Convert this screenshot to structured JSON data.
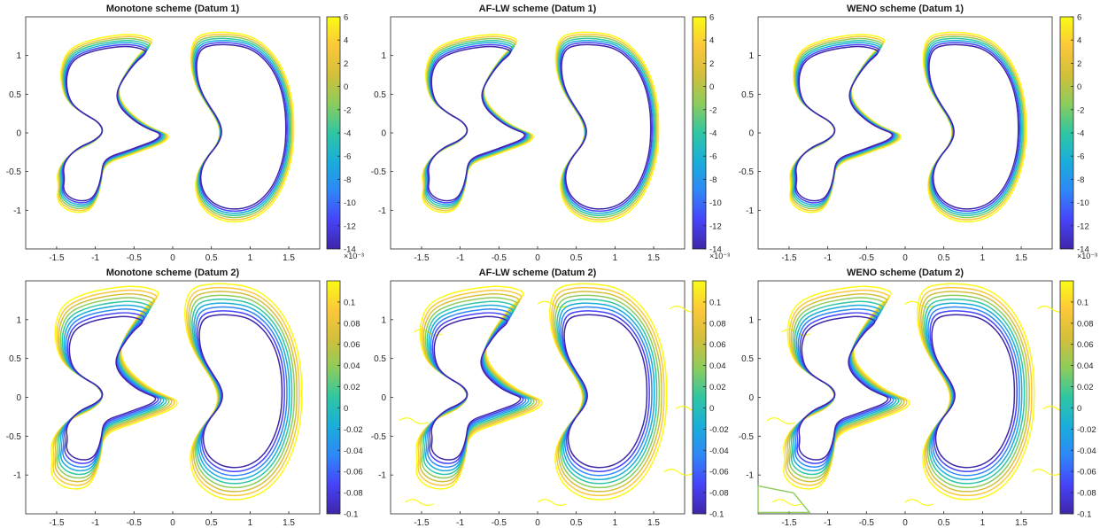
{
  "colormap": [
    "#3e26a8",
    "#4743f8",
    "#2e87f7",
    "#1aaddb",
    "#2fc6a3",
    "#8ccc5c",
    "#d2bf3b",
    "#fcc73a",
    "#f9fb15"
  ],
  "chart_data": [
    {
      "type": "contour",
      "title": "Monotone scheme (Datum 1)",
      "xlim": [
        -1.9,
        1.9
      ],
      "ylim": [
        -1.5,
        1.5
      ],
      "xticks": [
        -1.5,
        -1,
        -0.5,
        0,
        0.5,
        1,
        1.5
      ],
      "xtick_labels": [
        "-1.5",
        "-1",
        "-0.5",
        "0",
        "0.5",
        "1",
        "1.5"
      ],
      "yticks": [
        1,
        0.5,
        0,
        -0.5,
        -1
      ],
      "ytick_labels": [
        "1",
        "0.5",
        "0",
        "-0.5",
        "-1"
      ],
      "colorbar": {
        "range": [
          -0.014,
          0.006
        ],
        "ticks": [
          6,
          4,
          2,
          0,
          -2,
          -4,
          -6,
          -8,
          -10,
          -12,
          -14
        ],
        "tick_labels": [
          "6",
          "4",
          "2",
          "0",
          "-2",
          "-4",
          "-6",
          "-8",
          "-10",
          "-12",
          "-14"
        ],
        "exponent": "×10⁻³"
      },
      "contour_levels": 7,
      "noise": false
    },
    {
      "type": "contour",
      "title": "AF-LW scheme (Datum 1)",
      "xlim": [
        -1.9,
        1.9
      ],
      "ylim": [
        -1.5,
        1.5
      ],
      "xticks": [
        -1.5,
        -1,
        -0.5,
        0,
        0.5,
        1,
        1.5
      ],
      "xtick_labels": [
        "-1.5",
        "-1",
        "-0.5",
        "0",
        "0.5",
        "1",
        "1.5"
      ],
      "yticks": [
        1,
        0.5,
        0,
        -0.5,
        -1
      ],
      "ytick_labels": [
        "1",
        "0.5",
        "0",
        "-0.5",
        "-1"
      ],
      "colorbar": {
        "range": [
          -0.014,
          0.006
        ],
        "ticks": [
          6,
          4,
          2,
          0,
          -2,
          -4,
          -6,
          -8,
          -10,
          -12,
          -14
        ],
        "tick_labels": [
          "6",
          "4",
          "2",
          "0",
          "-2",
          "-4",
          "-6",
          "-8",
          "-10",
          "-12",
          "-14"
        ],
        "exponent": "×10⁻³"
      },
      "contour_levels": 7,
      "noise": false
    },
    {
      "type": "contour",
      "title": "WENO scheme (Datum 1)",
      "xlim": [
        -1.9,
        1.9
      ],
      "ylim": [
        -1.5,
        1.5
      ],
      "xticks": [
        -1.5,
        -1,
        -0.5,
        0,
        0.5,
        1,
        1.5
      ],
      "xtick_labels": [
        "-1.5",
        "-1",
        "-0.5",
        "0",
        "0.5",
        "1",
        "1.5"
      ],
      "yticks": [
        1,
        0.5,
        0,
        -0.5,
        -1
      ],
      "ytick_labels": [
        "1",
        "0.5",
        "0",
        "-0.5",
        "-1"
      ],
      "colorbar": {
        "range": [
          -0.014,
          0.006
        ],
        "ticks": [
          6,
          4,
          2,
          0,
          -2,
          -4,
          -6,
          -8,
          -10,
          -12,
          -14
        ],
        "tick_labels": [
          "6",
          "4",
          "2",
          "0",
          "-2",
          "-4",
          "-6",
          "-8",
          "-10",
          "-12",
          "-14"
        ],
        "exponent": "×10⁻³"
      },
      "contour_levels": 7,
      "noise": false
    },
    {
      "type": "contour",
      "title": "Monotone scheme (Datum 2)",
      "xlim": [
        -1.9,
        1.9
      ],
      "ylim": [
        -1.5,
        1.5
      ],
      "xticks": [
        -1.5,
        -1,
        -0.5,
        0,
        0.5,
        1,
        1.5
      ],
      "xtick_labels": [
        "-1.5",
        "-1",
        "-0.5",
        "0",
        "0.5",
        "1",
        "1.5"
      ],
      "yticks": [
        1,
        0.5,
        0,
        -0.5,
        -1
      ],
      "ytick_labels": [
        "1",
        "0.5",
        "0",
        "-0.5",
        "-1"
      ],
      "colorbar": {
        "range": [
          -0.1,
          0.12
        ],
        "ticks": [
          0.1,
          0.08,
          0.06,
          0.04,
          0.02,
          0,
          -0.02,
          -0.04,
          -0.06,
          -0.08,
          -0.1
        ],
        "tick_labels": [
          "0.1",
          "0.08",
          "0.06",
          "0.04",
          "0.02",
          "0",
          "-0.02",
          "-0.04",
          "-0.06",
          "-0.08",
          "-0.1"
        ],
        "exponent": ""
      },
      "contour_levels": 9,
      "noise": false
    },
    {
      "type": "contour",
      "title": "AF-LW scheme (Datum 2)",
      "xlim": [
        -1.9,
        1.9
      ],
      "ylim": [
        -1.5,
        1.5
      ],
      "xticks": [
        -1.5,
        -1,
        -0.5,
        0,
        0.5,
        1,
        1.5
      ],
      "xtick_labels": [
        "-1.5",
        "-1",
        "-0.5",
        "0",
        "0.5",
        "1",
        "1.5"
      ],
      "yticks": [
        1,
        0.5,
        0,
        -0.5,
        -1
      ],
      "ytick_labels": [
        "1",
        "0.5",
        "0",
        "-0.5",
        "-1"
      ],
      "colorbar": {
        "range": [
          -0.1,
          0.12
        ],
        "ticks": [
          0.1,
          0.08,
          0.06,
          0.04,
          0.02,
          0,
          -0.02,
          -0.04,
          -0.06,
          -0.08,
          -0.1
        ],
        "tick_labels": [
          "0.1",
          "0.08",
          "0.06",
          "0.04",
          "0.02",
          "0",
          "-0.02",
          "-0.04",
          "-0.06",
          "-0.08",
          "-0.1"
        ],
        "exponent": ""
      },
      "contour_levels": 9,
      "noise": true
    },
    {
      "type": "contour",
      "title": "WENO scheme (Datum 2)",
      "xlim": [
        -1.9,
        1.9
      ],
      "ylim": [
        -1.5,
        1.5
      ],
      "xticks": [
        -1.5,
        -1,
        -0.5,
        0,
        0.5,
        1,
        1.5
      ],
      "xtick_labels": [
        "-1.5",
        "-1",
        "-0.5",
        "0",
        "0.5",
        "1",
        "1.5"
      ],
      "yticks": [
        1,
        0.5,
        0,
        -0.5,
        -1
      ],
      "ytick_labels": [
        "1",
        "0.5",
        "0",
        "-0.5",
        "-1"
      ],
      "colorbar": {
        "range": [
          -0.1,
          0.12
        ],
        "ticks": [
          0.1,
          0.08,
          0.06,
          0.04,
          0.02,
          0,
          -0.02,
          -0.04,
          -0.06,
          -0.08,
          -0.1
        ],
        "tick_labels": [
          "0.1",
          "0.08",
          "0.06",
          "0.04",
          "0.02",
          "0",
          "-0.02",
          "-0.04",
          "-0.06",
          "-0.08",
          "-0.1"
        ],
        "exponent": ""
      },
      "contour_levels": 9,
      "noise": true
    }
  ]
}
